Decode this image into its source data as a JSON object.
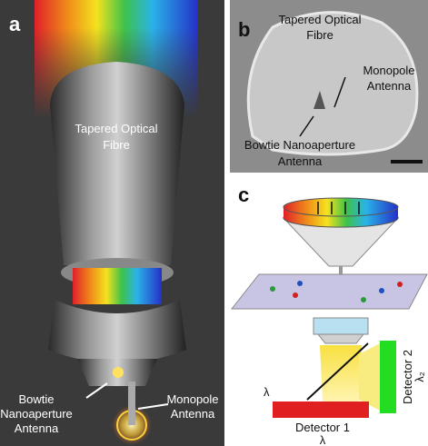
{
  "panels": {
    "a": {
      "label": "a",
      "fibre": [
        "Tapered Optical",
        "Fibre"
      ],
      "bowtie": [
        "Bowtie",
        "Nanoaperture",
        "Antenna"
      ],
      "monopole": [
        "Monopole",
        "Antenna"
      ]
    },
    "b": {
      "label": "b",
      "fibre": [
        "Tapered Optical",
        "Fibre"
      ],
      "monopole": [
        "Monopole",
        "Antenna"
      ],
      "bowtie": [
        "Bowtie Nanoaperture",
        "Antenna"
      ]
    },
    "c": {
      "label": "c",
      "beam": "λ",
      "detector1": "Detector 1",
      "detector1_lambda": "λ",
      "detector2": "Detector 2",
      "detector2_lambda": "λ₂"
    }
  }
}
